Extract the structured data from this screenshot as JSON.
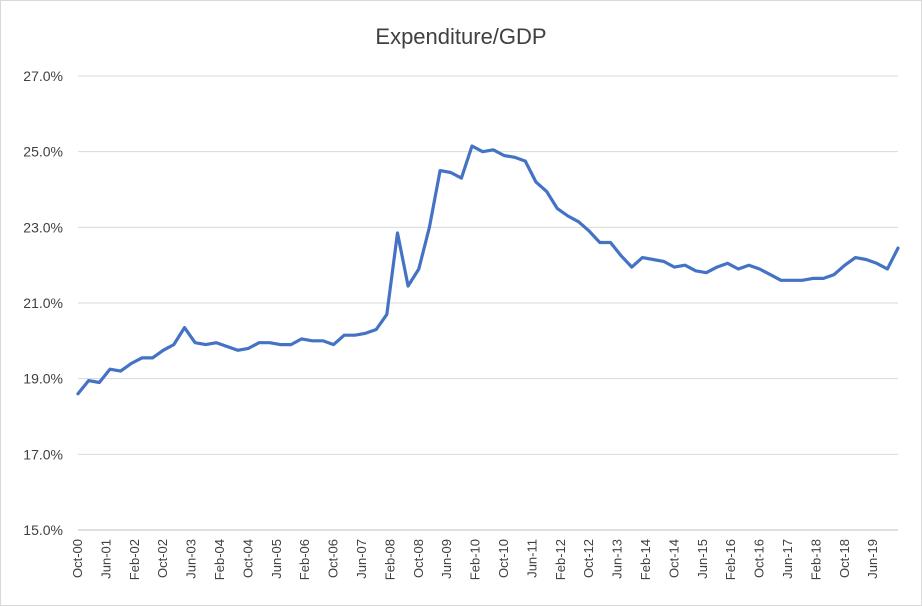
{
  "chart_data": {
    "type": "line",
    "title": "Expenditure/GDP",
    "xlabel": "",
    "ylabel": "",
    "ylim": [
      15.0,
      27.0
    ],
    "y_ticks": [
      "15.0%",
      "17.0%",
      "19.0%",
      "21.0%",
      "23.0%",
      "25.0%",
      "27.0%"
    ],
    "grid": true,
    "legend": "none",
    "x_tick_labels": [
      "Oct-00",
      "Jun-01",
      "Feb-02",
      "Oct-02",
      "Jun-03",
      "Feb-04",
      "Oct-04",
      "Jun-05",
      "Feb-06",
      "Oct-06",
      "Jun-07",
      "Feb-08",
      "Oct-08",
      "Jun-09",
      "Feb-10",
      "Oct-10",
      "Jun-11",
      "Feb-12",
      "Oct-12",
      "Jun-13",
      "Feb-14",
      "Oct-14",
      "Jun-15",
      "Feb-16",
      "Oct-16",
      "Jun-17",
      "Feb-18",
      "Oct-18",
      "Jun-19"
    ],
    "series": [
      {
        "name": "Expenditure/GDP",
        "color": "#4472c4",
        "values": [
          18.6,
          18.95,
          18.9,
          19.25,
          19.2,
          19.4,
          19.55,
          19.55,
          19.75,
          19.9,
          20.35,
          19.95,
          19.9,
          19.95,
          19.85,
          19.75,
          19.8,
          19.95,
          19.95,
          19.9,
          19.9,
          20.05,
          20.0,
          20.0,
          19.9,
          20.15,
          20.15,
          20.2,
          20.3,
          20.7,
          22.85,
          21.45,
          21.9,
          23.0,
          24.5,
          24.45,
          24.3,
          25.15,
          25.0,
          25.05,
          24.9,
          24.85,
          24.75,
          24.2,
          23.95,
          23.5,
          23.3,
          23.15,
          22.9,
          22.6,
          22.6,
          22.25,
          21.95,
          22.2,
          22.15,
          22.1,
          21.95,
          22.0,
          21.85,
          21.8,
          21.95,
          22.05,
          21.9,
          22.0,
          21.9,
          21.75,
          21.6,
          21.6,
          21.6,
          21.65,
          21.65,
          21.75,
          22.0,
          22.2,
          22.15,
          22.05,
          21.9,
          22.45
        ]
      }
    ]
  }
}
